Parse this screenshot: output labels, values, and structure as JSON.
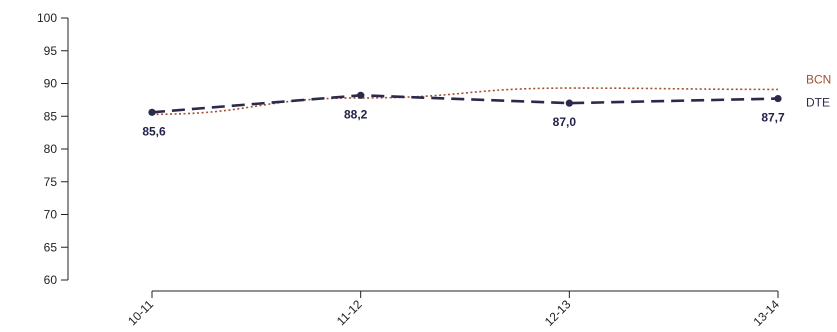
{
  "chart_data": {
    "type": "line",
    "categories": [
      "10-11",
      "11-12",
      "12-13",
      "13-14"
    ],
    "series": [
      {
        "name": "BCN",
        "values": [
          85.3,
          87.8,
          89.3,
          89.1
        ],
        "color": "#a0522d",
        "style": "dotted"
      },
      {
        "name": "DTE",
        "values": [
          85.6,
          88.2,
          87.0,
          87.7
        ],
        "value_labels": [
          "85,6",
          "88,2",
          "87,0",
          "87,7"
        ],
        "color": "#2b2a4c",
        "style": "dashed",
        "markers": true
      }
    ],
    "yticks": [
      "60",
      "65",
      "70",
      "75",
      "80",
      "85",
      "90",
      "95",
      "100"
    ],
    "ylim": [
      60,
      100
    ],
    "grid": false,
    "legend": "right-inline"
  }
}
